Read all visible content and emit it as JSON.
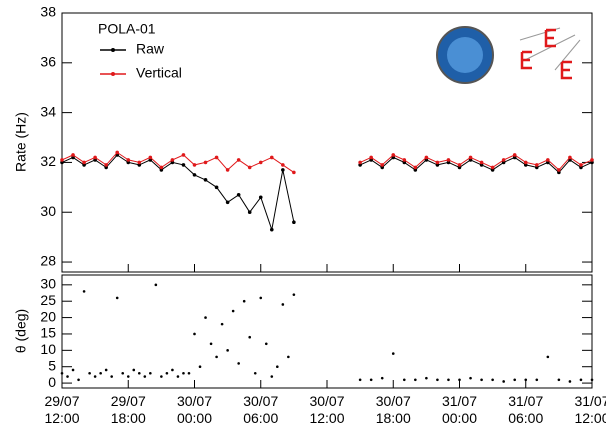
{
  "chart_data": [
    {
      "type": "line",
      "ylabel": "Rate (Hz)",
      "legend_title": "POLA-01",
      "legend": "top-left",
      "x": [
        0,
        1,
        2,
        3,
        4,
        5,
        6,
        7,
        8,
        9,
        10,
        11,
        12,
        13,
        14,
        15,
        16,
        17,
        18,
        19,
        20,
        21,
        24,
        27,
        28,
        29,
        30,
        31,
        32,
        33,
        34,
        35,
        36,
        37,
        38,
        39,
        40,
        41,
        42,
        43,
        44,
        45,
        46,
        47,
        48
      ],
      "series": [
        {
          "name": "Raw",
          "color": "#000000",
          "values": [
            32.0,
            32.2,
            31.9,
            32.1,
            31.8,
            32.3,
            32.0,
            31.9,
            32.1,
            31.7,
            32.0,
            31.9,
            31.5,
            31.3,
            31.0,
            30.4,
            30.7,
            30.0,
            30.6,
            29.3,
            31.7,
            29.6,
            null,
            31.9,
            32.1,
            31.8,
            32.2,
            32.0,
            31.7,
            32.1,
            31.9,
            32.0,
            31.8,
            32.1,
            31.9,
            31.7,
            32.0,
            32.2,
            31.9,
            31.8,
            32.0,
            31.6,
            32.1,
            31.8,
            32.0
          ]
        },
        {
          "name": "Vertical",
          "color": "#e0191b",
          "values": [
            32.1,
            32.3,
            32.0,
            32.2,
            31.9,
            32.4,
            32.1,
            32.0,
            32.2,
            31.8,
            32.1,
            32.3,
            31.9,
            32.0,
            32.2,
            31.7,
            32.1,
            31.8,
            32.0,
            32.2,
            31.9,
            31.6,
            null,
            32.0,
            32.2,
            31.9,
            32.3,
            32.1,
            31.8,
            32.2,
            32.0,
            32.1,
            31.9,
            32.2,
            32.0,
            31.8,
            32.1,
            32.3,
            32.0,
            31.9,
            32.1,
            31.7,
            32.2,
            31.9,
            32.1
          ]
        }
      ],
      "xlim": [
        0,
        48
      ],
      "xticks": [
        0,
        6,
        12,
        18,
        24,
        30,
        36,
        42,
        48
      ],
      "ylim": [
        27.6,
        38
      ],
      "yticks": [
        28,
        30,
        32,
        34,
        36,
        38
      ]
    },
    {
      "type": "scatter",
      "ylabel": "θ (deg)",
      "color": "#000000",
      "x": [
        0,
        0.5,
        1,
        1.5,
        2,
        2.5,
        3,
        3.5,
        4,
        4.5,
        5,
        5.5,
        6,
        6.5,
        7,
        7.5,
        8,
        8.5,
        9,
        9.5,
        10,
        10.5,
        11,
        11.5,
        12,
        12.5,
        13,
        13.5,
        14,
        14.5,
        15,
        15.5,
        16,
        16.5,
        17,
        17.5,
        18,
        18.5,
        19,
        19.5,
        20,
        20.5,
        21,
        27,
        28,
        29,
        30,
        31,
        32,
        33,
        34,
        35,
        36,
        37,
        38,
        39,
        40,
        41,
        42,
        43,
        44,
        45,
        46,
        47,
        48
      ],
      "values": [
        3,
        2,
        4,
        1,
        28,
        3,
        2,
        3,
        4,
        2,
        26,
        3,
        2,
        4,
        3,
        2,
        3,
        30,
        2,
        3,
        4,
        2,
        3,
        3,
        15,
        5,
        20,
        12,
        8,
        18,
        10,
        22,
        6,
        25,
        14,
        3,
        26,
        12,
        2,
        5,
        24,
        8,
        27,
        1,
        1,
        1.5,
        9,
        1,
        1,
        1.5,
        1,
        1,
        1,
        1.5,
        1,
        1,
        0.5,
        1,
        1,
        1,
        8,
        1,
        0.5,
        1,
        1
      ],
      "xlim": [
        0,
        48
      ],
      "xticks": [
        {
          "value": 0,
          "label": "29/07 12:00"
        },
        {
          "value": 6,
          "label": "29/07 18:00"
        },
        {
          "value": 12,
          "label": "30/07 00:00"
        },
        {
          "value": 18,
          "label": "30/07 06:00"
        },
        {
          "value": 24,
          "label": "30/07 12:00"
        },
        {
          "value": 30,
          "label": "30/07 18:00"
        },
        {
          "value": 36,
          "label": "31/07 00:00"
        },
        {
          "value": 42,
          "label": "31/07 06:00"
        },
        {
          "value": 48,
          "label": "31/07 12:00"
        }
      ],
      "ylim": [
        -1.5,
        33
      ],
      "yticks": [
        0,
        5,
        10,
        15,
        20,
        25,
        30
      ]
    }
  ]
}
